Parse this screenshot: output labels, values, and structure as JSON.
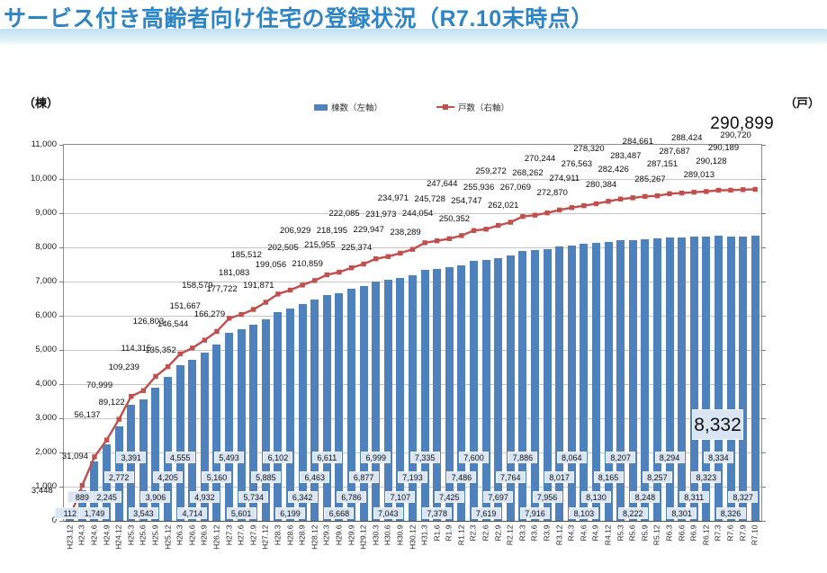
{
  "chart_data": {
    "type": "bar+line",
    "title": "サービス付き高齢者向け住宅の登録状況（R7.10末時点）",
    "categories": [
      "H23.12",
      "H24.3",
      "H24.6",
      "H24.9",
      "H24.12",
      "H25.3",
      "H25.6",
      "H25.9",
      "H25.12",
      "H26.3",
      "H26.6",
      "H26.9",
      "H26.12",
      "H27.3",
      "H27.6",
      "H27.9",
      "H27.12",
      "H28.3",
      "H28.6",
      "H28.9",
      "H28.12",
      "H29.3",
      "H29.6",
      "H29.9",
      "H29.12",
      "H30.3",
      "H30.6",
      "H30.9",
      "H30.12",
      "H31.3",
      "R1.6",
      "R1.9",
      "R1.12",
      "R2.3",
      "R2.6",
      "R2.9",
      "R2.12",
      "R3.3",
      "R3.6",
      "R3.9",
      "R3.12",
      "R4.3",
      "R4.6",
      "R4.9",
      "R4.12",
      "R5.3",
      "R5.6",
      "R5.9",
      "R5.12",
      "R6.3",
      "R6.6",
      "R6.9",
      "R6.12",
      "R7.3",
      "R7.6",
      "R7.9",
      "R7.10"
    ],
    "series": [
      {
        "name": "棟数（左軸）",
        "type": "bar",
        "axis": "left",
        "color": "#4f81bd",
        "values": [
          112,
          889,
          1749,
          2245,
          2772,
          3391,
          3543,
          3906,
          4205,
          4555,
          4714,
          4932,
          5160,
          5493,
          5601,
          5734,
          5885,
          6102,
          6199,
          6342,
          6463,
          6611,
          6668,
          6786,
          6877,
          6999,
          7043,
          7107,
          7193,
          7335,
          7378,
          7425,
          7486,
          7600,
          7619,
          7697,
          7764,
          7886,
          7916,
          7956,
          8017,
          8064,
          8103,
          8130,
          8165,
          8207,
          8222,
          8248,
          8257,
          8294,
          8301,
          8311,
          8323,
          8334,
          8326,
          8327,
          8332
        ]
      },
      {
        "name": "戸数（右軸）",
        "type": "line",
        "axis": "right",
        "color": "#c0504d",
        "values": [
          3448,
          31094,
          56137,
          70999,
          89122,
          109239,
          114315,
          126803,
          135352,
          146544,
          151667,
          158579,
          166279,
          177722,
          181083,
          185512,
          191871,
          199056,
          202505,
          206929,
          210859,
          215955,
          218195,
          222085,
          225374,
          229947,
          231973,
          234971,
          238289,
          244054,
          245728,
          247644,
          250352,
          254747,
          255936,
          259272,
          262021,
          267069,
          268262,
          270244,
          272870,
          274911,
          276563,
          278320,
          280384,
          282426,
          283487,
          284661,
          285267,
          287151,
          287687,
          288424,
          289013,
          290128,
          290189,
          290720,
          290899
        ]
      }
    ],
    "left_axis": {
      "label": "（棟）",
      "min": 0,
      "max": 11000,
      "step": 1000
    },
    "right_axis": {
      "label": "（戸）",
      "min": 0,
      "max": 330000,
      "step": 30000
    },
    "grid": true,
    "legend_position": "top-center",
    "highlight": {
      "bar_final": "8,332",
      "line_final": "290,899"
    }
  }
}
